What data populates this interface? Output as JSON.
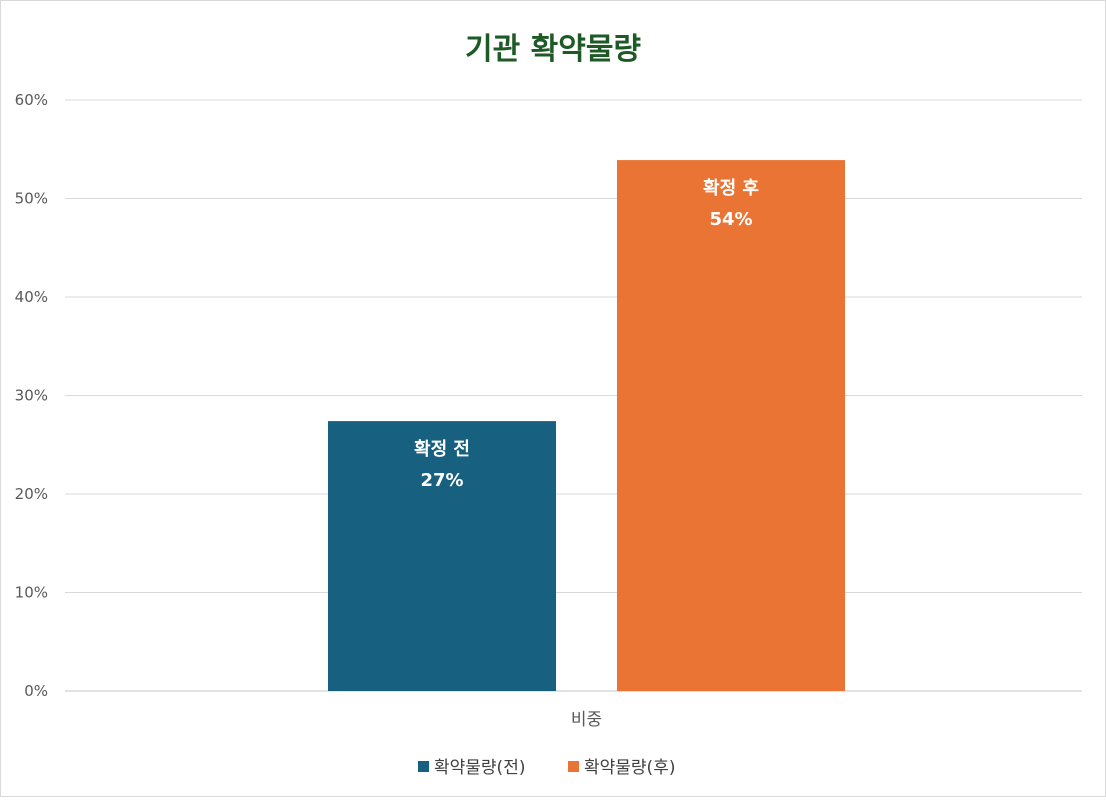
{
  "chart_data": {
    "type": "bar",
    "title": "기관 확약물량",
    "title_color": "#1e5a26",
    "categories": [
      "비중"
    ],
    "series": [
      {
        "name": "확약물량(전)",
        "values": [
          0.274
        ],
        "color": "#17607f",
        "bar_label": "확정 전",
        "value_label": "27%"
      },
      {
        "name": "확약물량(후)",
        "values": [
          0.539
        ],
        "color": "#e97434",
        "bar_label": "확정 후",
        "value_label": "54%"
      }
    ],
    "ylim": [
      0,
      0.6
    ],
    "yticks": [
      {
        "value": 0,
        "label": "0%"
      },
      {
        "value": 0.1,
        "label": "10%"
      },
      {
        "value": 0.2,
        "label": "20%"
      },
      {
        "value": 0.3,
        "label": "30%"
      },
      {
        "value": 0.4,
        "label": "40%"
      },
      {
        "value": 0.5,
        "label": "50%"
      },
      {
        "value": 0.6,
        "label": "60%"
      }
    ],
    "xlabel": "",
    "ylabel": "",
    "grid": true,
    "gridline_color": "#d9d9d9",
    "legend_position": "bottom"
  }
}
